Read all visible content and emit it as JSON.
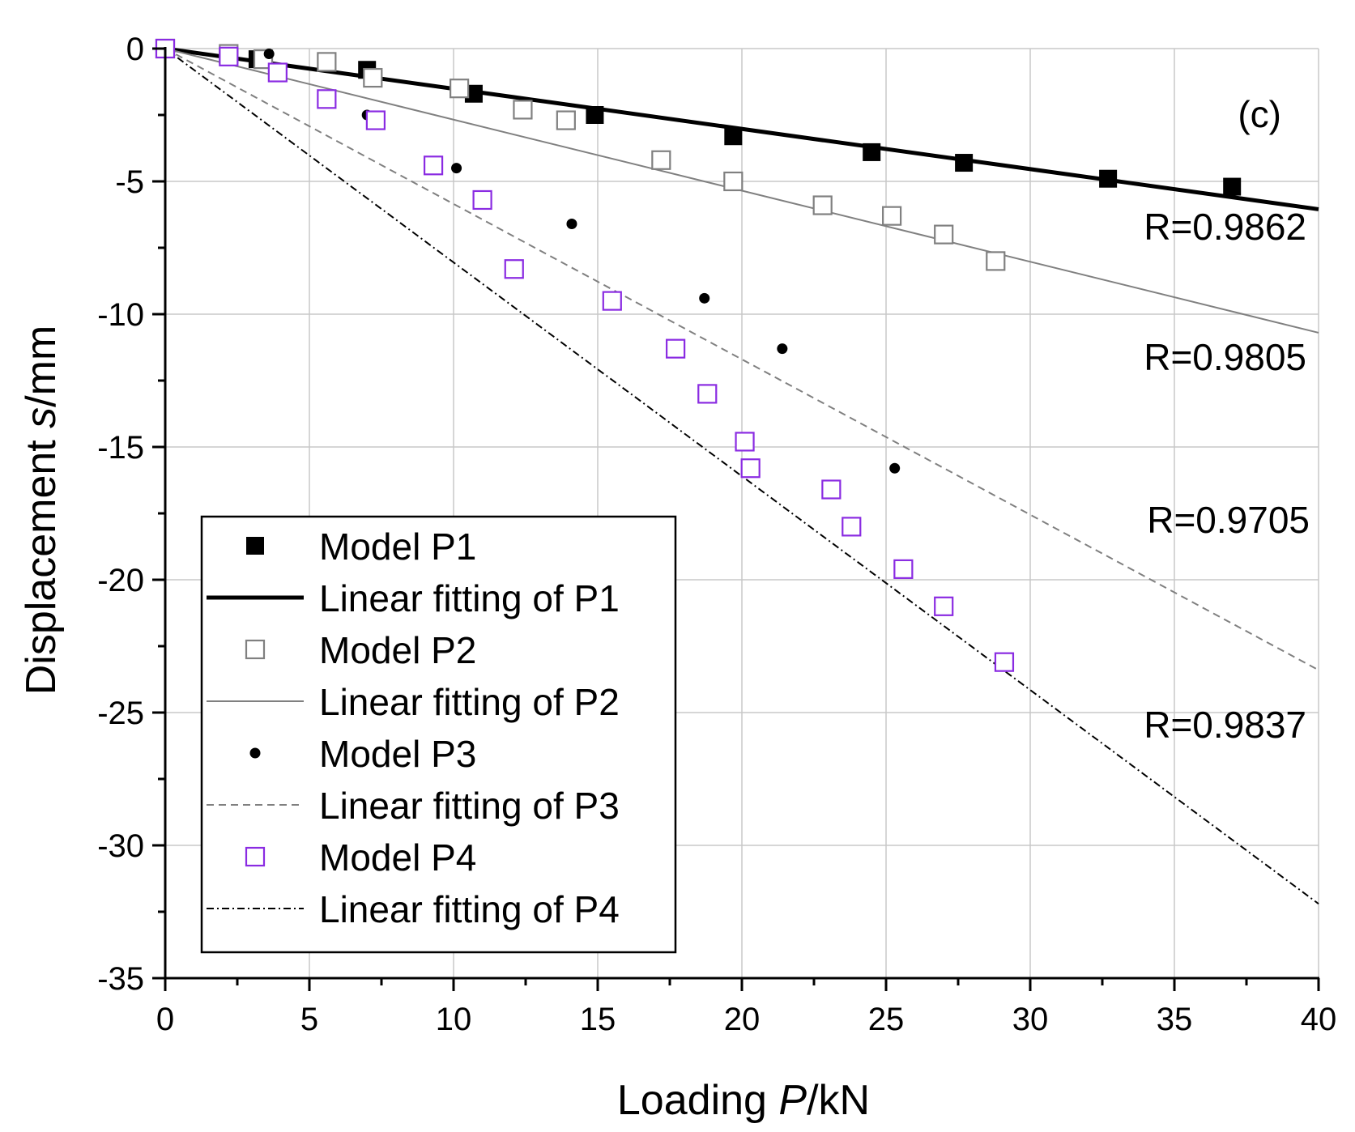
{
  "chart_data": {
    "type": "scatter",
    "panel_label": "(c)",
    "xlabel_prefix": "Loading ",
    "xlabel_var": "P",
    "xlabel_suffix": "/kN",
    "ylabel_prefix": "Displacement ",
    "ylabel_var": "s",
    "ylabel_suffix": "/mm",
    "xlim": [
      0,
      40
    ],
    "ylim": [
      -35,
      0
    ],
    "xticks": [
      0,
      5,
      10,
      15,
      20,
      25,
      30,
      35,
      40
    ],
    "yticks": [
      0,
      -5,
      -10,
      -15,
      -20,
      -25,
      -30,
      -35
    ],
    "xtick_labels": [
      "0",
      "5",
      "10",
      "15",
      "20",
      "25",
      "30",
      "35",
      "40"
    ],
    "ytick_labels": [
      "0",
      "-5",
      "-10",
      "-15",
      "-20",
      "-25",
      "-30",
      "-35"
    ],
    "grid": true,
    "legend_position": "bottom-left",
    "series": [
      {
        "name": "Model P1",
        "kind": "points",
        "marker": "filled-square",
        "color": "#000000",
        "x": [
          0,
          2.2,
          3.2,
          7.0,
          10.7,
          14.9,
          19.7,
          24.5,
          27.7,
          32.7,
          37.0
        ],
        "y": [
          0,
          -0.3,
          -0.4,
          -0.8,
          -1.7,
          -2.5,
          -3.3,
          -3.9,
          -4.3,
          -4.9,
          -5.2
        ]
      },
      {
        "name": "Linear fitting of P1",
        "kind": "line",
        "style": "thick-solid",
        "color": "#000000",
        "x": [
          0,
          40
        ],
        "y": [
          0,
          -6.05
        ],
        "r_label": "R=0.9862"
      },
      {
        "name": "Model P2",
        "kind": "points",
        "marker": "open-square",
        "color": "#808080",
        "x": [
          0,
          2.2,
          3.4,
          5.6,
          7.2,
          10.2,
          12.4,
          13.9,
          17.2,
          19.7,
          22.8,
          25.2,
          27.0,
          28.8
        ],
        "y": [
          0,
          -0.2,
          -0.4,
          -0.5,
          -1.1,
          -1.5,
          -2.3,
          -2.7,
          -4.2,
          -5.0,
          -5.9,
          -6.3,
          -7.0,
          -8.0
        ]
      },
      {
        "name": "Linear fitting of P2",
        "kind": "line",
        "style": "thin-solid",
        "color": "#808080",
        "x": [
          0,
          40
        ],
        "y": [
          0,
          -10.7
        ],
        "r_label": "R=0.9805"
      },
      {
        "name": "Model P3",
        "kind": "points",
        "marker": "filled-circle",
        "color": "#000000",
        "x": [
          3.6,
          7.0,
          10.1,
          14.1,
          18.7,
          21.4,
          25.3
        ],
        "y": [
          -0.2,
          -2.5,
          -4.5,
          -6.6,
          -9.4,
          -11.3,
          -15.8
        ]
      },
      {
        "name": "Linear fitting of P3",
        "kind": "line",
        "style": "dashed",
        "color": "#808080",
        "x": [
          0,
          40
        ],
        "y": [
          0,
          -23.4
        ],
        "r_label": "R=0.9705"
      },
      {
        "name": "Model P4",
        "kind": "points",
        "marker": "open-square",
        "color": "#8a2be2",
        "x": [
          0,
          2.2,
          3.9,
          5.6,
          7.3,
          9.3,
          11.0,
          12.1,
          15.5,
          17.7,
          18.8,
          20.1,
          20.3,
          23.1,
          23.8,
          25.6,
          27.0,
          29.1
        ],
        "y": [
          0,
          -0.3,
          -0.9,
          -1.9,
          -2.7,
          -4.4,
          -5.7,
          -8.3,
          -9.5,
          -11.3,
          -13.0,
          -14.8,
          -15.8,
          -16.6,
          -18.0,
          -19.6,
          -21.0,
          -23.1
        ]
      },
      {
        "name": "Linear fitting of P4",
        "kind": "line",
        "style": "dash-dot",
        "color": "#000000",
        "x": [
          0,
          40
        ],
        "y": [
          0,
          -32.2
        ],
        "r_label": "R=0.9837"
      }
    ]
  }
}
